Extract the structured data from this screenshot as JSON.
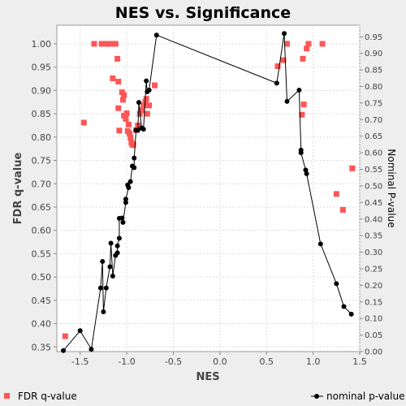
{
  "chart_data": {
    "type": "scatter",
    "title": "NES vs. Significance",
    "xlabel": "NES",
    "ylabel": "FDR q-value",
    "y2label": "Nominal P-value",
    "xlim": [
      -1.75,
      1.5
    ],
    "ylim": [
      0.34,
      1.04
    ],
    "y2lim": [
      0.0,
      0.985
    ],
    "x_ticks": [
      "-1.5",
      "-1.0",
      "-0.5",
      "0.0",
      "0.5",
      "1.0",
      "1.5"
    ],
    "y_ticks": [
      "0.35",
      "0.40",
      "0.45",
      "0.50",
      "0.55",
      "0.60",
      "0.65",
      "0.70",
      "0.75",
      "0.80",
      "0.85",
      "0.90",
      "0.95",
      "1.00"
    ],
    "y2_ticks": [
      "0.00",
      "0.05",
      "0.10",
      "0.15",
      "0.20",
      "0.25",
      "0.30",
      "0.35",
      "0.40",
      "0.45",
      "0.50",
      "0.55",
      "0.60",
      "0.65",
      "0.70",
      "0.75",
      "0.80",
      "0.85",
      "0.90",
      "0.95"
    ],
    "grid": true,
    "legend_position": "bottom",
    "series": [
      {
        "name": "FDR q-value",
        "axis": "left",
        "style": "square-markers",
        "color": "#ff5555",
        "points": [
          [
            -1.66,
            0.373
          ],
          [
            -1.46,
            0.831
          ],
          [
            -1.35,
            1.0
          ],
          [
            -1.27,
            1.0
          ],
          [
            -1.25,
            1.0
          ],
          [
            -1.22,
            1.0
          ],
          [
            -1.18,
            1.0
          ],
          [
            -1.15,
            1.0
          ],
          [
            -1.12,
            1.0
          ],
          [
            -1.1,
            0.968
          ],
          [
            -1.15,
            0.926
          ],
          [
            -1.09,
            0.919
          ],
          [
            -1.05,
            0.896
          ],
          [
            -1.03,
            0.89
          ],
          [
            -1.04,
            0.88
          ],
          [
            -1.09,
            0.862
          ],
          [
            -1.0,
            0.851
          ],
          [
            -1.03,
            0.846
          ],
          [
            -1.01,
            0.839
          ],
          [
            -0.98,
            0.827
          ],
          [
            -1.08,
            0.814
          ],
          [
            -0.99,
            0.813
          ],
          [
            -0.97,
            0.808
          ],
          [
            -0.96,
            0.799
          ],
          [
            -0.95,
            0.788
          ],
          [
            -0.94,
            0.784
          ],
          [
            -0.93,
            0.783
          ],
          [
            -0.9,
            0.815
          ],
          [
            -0.88,
            0.825
          ],
          [
            -0.86,
            0.85
          ],
          [
            -0.84,
            0.857
          ],
          [
            -0.82,
            0.868
          ],
          [
            -0.8,
            0.876
          ],
          [
            -0.79,
            0.882
          ],
          [
            -0.78,
            0.85
          ],
          [
            -0.76,
            0.868
          ],
          [
            -0.7,
            0.911
          ],
          [
            0.62,
            0.952
          ],
          [
            0.68,
            0.965
          ],
          [
            0.72,
            1.0
          ],
          [
            0.88,
            0.848
          ],
          [
            0.9,
            0.87
          ],
          [
            0.89,
            0.968
          ],
          [
            0.93,
            0.99
          ],
          [
            0.95,
            1.0
          ],
          [
            1.1,
            1.0
          ],
          [
            1.25,
            0.678
          ],
          [
            1.32,
            0.644
          ],
          [
            1.42,
            0.733
          ]
        ]
      },
      {
        "name": "nominal p-value",
        "axis": "right",
        "style": "line-markers",
        "color": "#000000",
        "points": [
          [
            -1.68,
            0.003
          ],
          [
            -1.5,
            0.063
          ],
          [
            -1.38,
            0.007
          ],
          [
            -1.28,
            0.192
          ],
          [
            -1.26,
            0.272
          ],
          [
            -1.25,
            0.12
          ],
          [
            -1.22,
            0.192
          ],
          [
            -1.18,
            0.256
          ],
          [
            -1.17,
            0.327
          ],
          [
            -1.15,
            0.228
          ],
          [
            -1.12,
            0.29
          ],
          [
            -1.1,
            0.298
          ],
          [
            -1.1,
            0.319
          ],
          [
            -1.08,
            0.342
          ],
          [
            -1.08,
            0.402
          ],
          [
            -1.05,
            0.403
          ],
          [
            -1.04,
            0.39
          ],
          [
            -1.01,
            0.45
          ],
          [
            -1.01,
            0.46
          ],
          [
            -0.98,
            0.495
          ],
          [
            -0.99,
            0.503
          ],
          [
            -0.96,
            0.513
          ],
          [
            -0.94,
            0.56
          ],
          [
            -0.92,
            0.555
          ],
          [
            -0.92,
            0.584
          ],
          [
            -0.9,
            0.668
          ],
          [
            -0.88,
            0.668
          ],
          [
            -0.87,
            0.752
          ],
          [
            -0.84,
            0.675
          ],
          [
            -0.82,
            0.671
          ],
          [
            -0.79,
            0.817
          ],
          [
            -0.78,
            0.784
          ],
          [
            -0.76,
            0.789
          ],
          [
            -0.68,
            0.955
          ],
          [
            0.61,
            0.81
          ],
          [
            0.69,
            0.96
          ],
          [
            0.72,
            0.755
          ],
          [
            0.85,
            0.789
          ],
          [
            0.87,
            0.608
          ],
          [
            0.87,
            0.6
          ],
          [
            0.92,
            0.548
          ],
          [
            0.93,
            0.537
          ],
          [
            1.08,
            0.325
          ],
          [
            1.25,
            0.205
          ],
          [
            1.33,
            0.136
          ],
          [
            1.41,
            0.113
          ]
        ]
      }
    ]
  }
}
